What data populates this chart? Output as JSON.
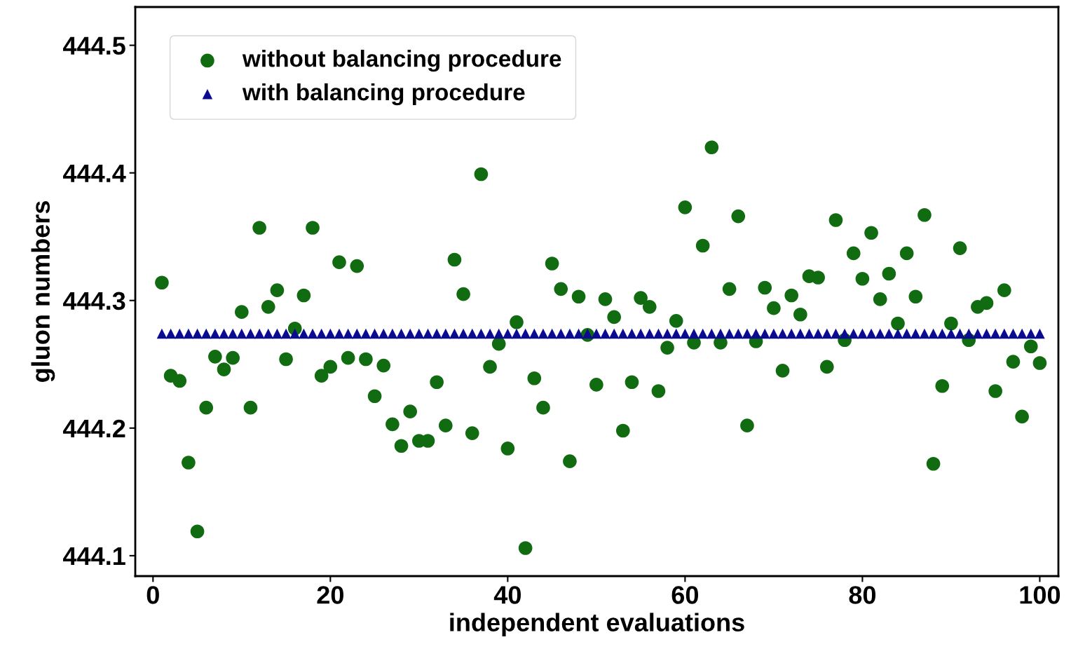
{
  "chart_data": {
    "type": "scatter",
    "xlabel": "independent evaluations",
    "ylabel": "gluon numbers",
    "xlim": [
      -2,
      102.1
    ],
    "ylim": [
      444.084,
      444.53
    ],
    "xticks": [
      0,
      20,
      40,
      60,
      80,
      100
    ],
    "yticks": [
      444.1,
      444.2,
      444.3,
      444.4,
      444.5
    ],
    "legend": "top left",
    "grid": false,
    "series": [
      {
        "name": "without balancing procedure",
        "color": "#116b11",
        "marker": "circle",
        "x": [
          1,
          2,
          3,
          4,
          5,
          6,
          7,
          8,
          9,
          10,
          11,
          12,
          13,
          14,
          15,
          16,
          17,
          18,
          19,
          20,
          21,
          22,
          23,
          24,
          25,
          26,
          27,
          28,
          29,
          30,
          31,
          32,
          33,
          34,
          35,
          36,
          37,
          38,
          39,
          40,
          41,
          42,
          43,
          44,
          45,
          46,
          47,
          48,
          49,
          50,
          51,
          52,
          53,
          54,
          55,
          56,
          57,
          58,
          59,
          60,
          61,
          62,
          63,
          64,
          65,
          66,
          67,
          68,
          69,
          70,
          71,
          72,
          73,
          74,
          75,
          76,
          77,
          78,
          79,
          80,
          81,
          82,
          83,
          84,
          85,
          86,
          87,
          88,
          89,
          90,
          91,
          92,
          93,
          94,
          95,
          96,
          97,
          98,
          99,
          100
        ],
        "values": [
          444.314,
          444.241,
          444.237,
          444.173,
          444.119,
          444.216,
          444.256,
          444.246,
          444.255,
          444.291,
          444.216,
          444.357,
          444.295,
          444.308,
          444.254,
          444.278,
          444.304,
          444.357,
          444.241,
          444.248,
          444.33,
          444.255,
          444.327,
          444.254,
          444.225,
          444.249,
          444.203,
          444.186,
          444.213,
          444.19,
          444.19,
          444.236,
          444.202,
          444.332,
          444.305,
          444.196,
          444.399,
          444.248,
          444.266,
          444.184,
          444.283,
          444.106,
          444.239,
          444.216,
          444.329,
          444.309,
          444.174,
          444.303,
          444.273,
          444.234,
          444.301,
          444.287,
          444.198,
          444.236,
          444.302,
          444.295,
          444.229,
          444.263,
          444.284,
          444.373,
          444.267,
          444.343,
          444.42,
          444.267,
          444.309,
          444.366,
          444.202,
          444.268,
          444.31,
          444.294,
          444.245,
          444.304,
          444.289,
          444.319,
          444.318,
          444.248,
          444.363,
          444.269,
          444.337,
          444.317,
          444.353,
          444.301,
          444.321,
          444.282,
          444.337,
          444.303,
          444.367,
          444.172,
          444.233,
          444.282,
          444.341,
          444.269,
          444.295,
          444.298,
          444.229,
          444.308,
          444.252,
          444.209,
          444.264,
          444.251
        ]
      },
      {
        "name": "with balancing procedure",
        "color": "#0b0b8f",
        "marker": "triangle",
        "x": [
          1,
          2,
          3,
          4,
          5,
          6,
          7,
          8,
          9,
          10,
          11,
          12,
          13,
          14,
          15,
          16,
          17,
          18,
          19,
          20,
          21,
          22,
          23,
          24,
          25,
          26,
          27,
          28,
          29,
          30,
          31,
          32,
          33,
          34,
          35,
          36,
          37,
          38,
          39,
          40,
          41,
          42,
          43,
          44,
          45,
          46,
          47,
          48,
          49,
          50,
          51,
          52,
          53,
          54,
          55,
          56,
          57,
          58,
          59,
          60,
          61,
          62,
          63,
          64,
          65,
          66,
          67,
          68,
          69,
          70,
          71,
          72,
          73,
          74,
          75,
          76,
          77,
          78,
          79,
          80,
          81,
          82,
          83,
          84,
          85,
          86,
          87,
          88,
          89,
          90,
          91,
          92,
          93,
          94,
          95,
          96,
          97,
          98,
          99,
          100
        ],
        "values": [
          444.274,
          444.274,
          444.274,
          444.274,
          444.274,
          444.274,
          444.274,
          444.274,
          444.274,
          444.274,
          444.274,
          444.274,
          444.274,
          444.274,
          444.274,
          444.274,
          444.274,
          444.274,
          444.274,
          444.274,
          444.274,
          444.274,
          444.274,
          444.274,
          444.274,
          444.274,
          444.274,
          444.274,
          444.274,
          444.274,
          444.274,
          444.274,
          444.274,
          444.274,
          444.274,
          444.274,
          444.274,
          444.274,
          444.274,
          444.274,
          444.274,
          444.274,
          444.274,
          444.274,
          444.274,
          444.274,
          444.274,
          444.274,
          444.274,
          444.274,
          444.274,
          444.274,
          444.274,
          444.274,
          444.274,
          444.274,
          444.274,
          444.274,
          444.274,
          444.274,
          444.274,
          444.274,
          444.274,
          444.274,
          444.274,
          444.274,
          444.274,
          444.274,
          444.274,
          444.274,
          444.274,
          444.274,
          444.274,
          444.274,
          444.274,
          444.274,
          444.274,
          444.274,
          444.274,
          444.274,
          444.274,
          444.274,
          444.274,
          444.274,
          444.274,
          444.274,
          444.274,
          444.274,
          444.274,
          444.274,
          444.274,
          444.274,
          444.274,
          444.274,
          444.274,
          444.274,
          444.274,
          444.274,
          444.274,
          444.274
        ]
      }
    ]
  }
}
